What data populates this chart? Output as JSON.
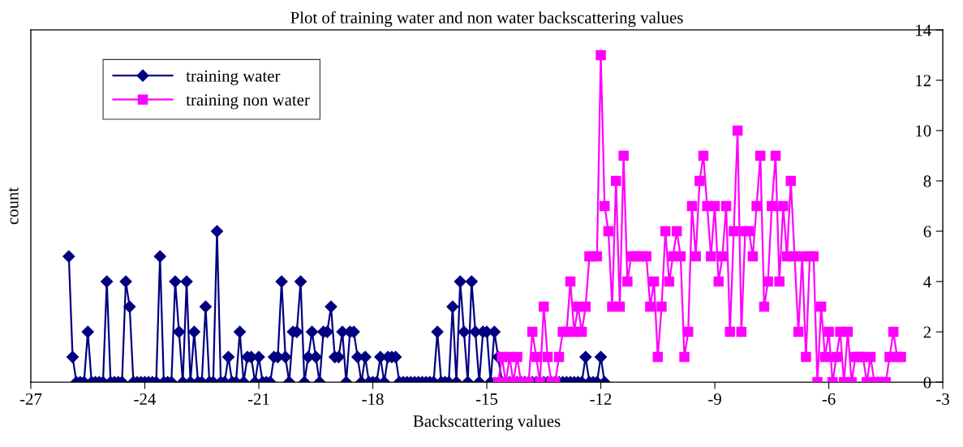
{
  "chart_data": {
    "type": "line",
    "title": "Plot of training water and non water backscattering values",
    "xlabel": "Backscattering values",
    "ylabel": "count",
    "xlim": [
      -27,
      -3
    ],
    "xticks": [
      -27,
      -24,
      -21,
      -18,
      -15,
      -12,
      -9,
      -6,
      -3
    ],
    "ylim": [
      0,
      14
    ],
    "yticks": [
      0,
      2,
      4,
      6,
      8,
      10,
      12,
      14
    ],
    "grid": false,
    "legend": "top left",
    "line_style": "solid",
    "series": [
      {
        "name": "training water",
        "color": "#000080",
        "marker": "diamond",
        "x": [
          -26.0,
          -25.9,
          -25.8,
          -25.7,
          -25.6,
          -25.5,
          -25.4,
          -25.3,
          -25.2,
          -25.1,
          -25.0,
          -24.9,
          -24.8,
          -24.7,
          -24.6,
          -24.5,
          -24.4,
          -24.3,
          -24.2,
          -24.1,
          -24.0,
          -23.9,
          -23.8,
          -23.7,
          -23.6,
          -23.5,
          -23.4,
          -23.3,
          -23.2,
          -23.1,
          -23.0,
          -22.9,
          -22.8,
          -22.7,
          -22.6,
          -22.5,
          -22.4,
          -22.3,
          -22.2,
          -22.1,
          -22.0,
          -21.9,
          -21.8,
          -21.7,
          -21.6,
          -21.5,
          -21.4,
          -21.3,
          -21.2,
          -21.1,
          -21.0,
          -20.9,
          -20.8,
          -20.7,
          -20.6,
          -20.5,
          -20.4,
          -20.3,
          -20.2,
          -20.1,
          -20.0,
          -19.9,
          -19.8,
          -19.7,
          -19.6,
          -19.5,
          -19.4,
          -19.3,
          -19.2,
          -19.1,
          -19.0,
          -18.9,
          -18.8,
          -18.7,
          -18.6,
          -18.5,
          -18.4,
          -18.3,
          -18.2,
          -18.1,
          -18.0,
          -17.9,
          -17.8,
          -17.7,
          -17.6,
          -17.5,
          -17.4,
          -17.3,
          -17.2,
          -17.1,
          -17.0,
          -16.9,
          -16.8,
          -16.7,
          -16.6,
          -16.5,
          -16.4,
          -16.3,
          -16.2,
          -16.1,
          -16.0,
          -15.9,
          -15.8,
          -15.7,
          -15.6,
          -15.5,
          -15.4,
          -15.3,
          -15.2,
          -15.1,
          -15.0,
          -14.9,
          -14.8,
          -14.7,
          -14.6,
          -14.5,
          -14.4,
          -14.3,
          -14.2,
          -14.1,
          -14.0,
          -13.9,
          -13.8,
          -13.7,
          -13.6,
          -13.5,
          -13.4,
          -13.3,
          -13.2,
          -13.1,
          -13.0,
          -12.9,
          -12.8,
          -12.7,
          -12.6,
          -12.5,
          -12.4,
          -12.3,
          -12.2,
          -12.1,
          -12.0,
          -11.9
        ],
        "values": [
          5,
          1,
          0,
          0,
          0,
          2,
          0,
          0,
          0,
          0,
          4,
          0,
          0,
          0,
          0,
          4,
          3,
          0,
          0,
          0,
          0,
          0,
          0,
          0,
          5,
          0,
          0,
          0,
          4,
          2,
          0,
          4,
          0,
          2,
          0,
          0,
          3,
          0,
          0,
          6,
          0,
          0,
          1,
          0,
          0,
          2,
          0,
          1,
          1,
          0,
          1,
          0,
          0,
          0,
          1,
          1,
          4,
          1,
          0,
          2,
          2,
          4,
          0,
          1,
          2,
          1,
          0,
          2,
          2,
          3,
          1,
          1,
          2,
          0,
          2,
          2,
          1,
          0,
          1,
          0,
          0,
          0,
          1,
          0,
          1,
          1,
          1,
          0,
          0,
          0,
          0,
          0,
          0,
          0,
          0,
          0,
          0,
          2,
          0,
          0,
          0,
          3,
          0,
          4,
          2,
          0,
          4,
          2,
          0,
          2,
          2,
          0,
          2,
          1,
          0,
          0,
          0,
          0,
          0,
          0,
          0,
          0,
          0,
          0,
          0,
          0,
          0,
          0,
          0,
          0,
          0,
          0,
          0,
          0,
          0,
          0,
          1,
          0,
          0,
          0,
          1,
          0
        ]
      },
      {
        "name": "training non water",
        "color": "#ff00ff",
        "marker": "square",
        "x": [
          -14.7,
          -14.6,
          -14.5,
          -14.4,
          -14.3,
          -14.2,
          -14.1,
          -14.0,
          -13.9,
          -13.8,
          -13.7,
          -13.6,
          -13.5,
          -13.4,
          -13.3,
          -13.2,
          -13.1,
          -13.0,
          -12.9,
          -12.8,
          -12.7,
          -12.6,
          -12.5,
          -12.4,
          -12.3,
          -12.2,
          -12.1,
          -12.0,
          -11.9,
          -11.8,
          -11.7,
          -11.6,
          -11.5,
          -11.4,
          -11.3,
          -11.2,
          -11.1,
          -11.0,
          -10.9,
          -10.8,
          -10.7,
          -10.6,
          -10.5,
          -10.4,
          -10.3,
          -10.2,
          -10.1,
          -10.0,
          -9.9,
          -9.8,
          -9.7,
          -9.6,
          -9.5,
          -9.4,
          -9.3,
          -9.2,
          -9.1,
          -9.0,
          -8.9,
          -8.8,
          -8.7,
          -8.6,
          -8.5,
          -8.4,
          -8.3,
          -8.2,
          -8.1,
          -8.0,
          -7.9,
          -7.8,
          -7.7,
          -7.6,
          -7.5,
          -7.4,
          -7.3,
          -7.2,
          -7.1,
          -7.0,
          -6.9,
          -6.8,
          -6.7,
          -6.6,
          -6.5,
          -6.4,
          -6.3,
          -6.2,
          -6.1,
          -6.0,
          -5.9,
          -5.8,
          -5.7,
          -5.6,
          -5.5,
          -5.4,
          -5.3,
          -5.2,
          -5.1,
          -5.0,
          -4.9,
          -4.8,
          -4.7,
          -4.6,
          -4.5,
          -4.4,
          -4.3,
          -4.2,
          -4.1
        ],
        "values": [
          0,
          1,
          0,
          1,
          0,
          1,
          0,
          0,
          0,
          2,
          1,
          0,
          3,
          1,
          0,
          0,
          1,
          2,
          2,
          4,
          2,
          3,
          2,
          3,
          5,
          5,
          5,
          13,
          7,
          6,
          3,
          8,
          3,
          9,
          4,
          5,
          5,
          5,
          5,
          5,
          3,
          4,
          1,
          3,
          6,
          4,
          5,
          6,
          5,
          1,
          2,
          7,
          5,
          8,
          9,
          7,
          5,
          7,
          4,
          5,
          7,
          2,
          6,
          10,
          2,
          6,
          6,
          5,
          7,
          9,
          3,
          4,
          7,
          9,
          4,
          7,
          5,
          8,
          5,
          2,
          5,
          1,
          5,
          5,
          0,
          3,
          1,
          2,
          0,
          1,
          2,
          0,
          2,
          0,
          1,
          1,
          1,
          0,
          1,
          0,
          0,
          0,
          0,
          1,
          2,
          1,
          1
        ]
      }
    ]
  }
}
